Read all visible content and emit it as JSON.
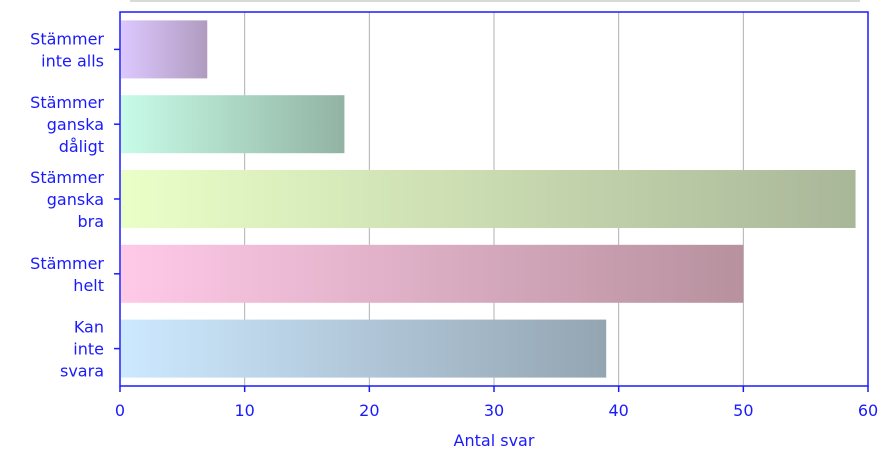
{
  "chart_data": {
    "type": "bar",
    "orientation": "horizontal",
    "categories": [
      [
        "Stämmer",
        "inte alls"
      ],
      [
        "Stämmer",
        "ganska",
        "dåligt"
      ],
      [
        "Stämmer",
        "ganska",
        "bra"
      ],
      [
        "Stämmer",
        "helt"
      ],
      [
        "Kan",
        "inte",
        "svara"
      ]
    ],
    "values": [
      7,
      18,
      59,
      50,
      39
    ],
    "xlabel": "Antal svar",
    "ylabel": "",
    "xlim": [
      0,
      60
    ],
    "xticks": [
      "0",
      "10",
      "20",
      "30",
      "40",
      "50",
      "60"
    ],
    "grid": "vertical",
    "legend": "none",
    "axis_color": "#1a1aff",
    "grid_color": "#b0b0b0",
    "bar_gradients": [
      [
        "#ddc8ff",
        "#b09bbf"
      ],
      [
        "#c8fce8",
        "#92b3a3"
      ],
      [
        "#eaffc8",
        "#a9b799"
      ],
      [
        "#ffc9e8",
        "#b7919e"
      ],
      [
        "#cde9ff",
        "#94a5b2"
      ]
    ]
  }
}
